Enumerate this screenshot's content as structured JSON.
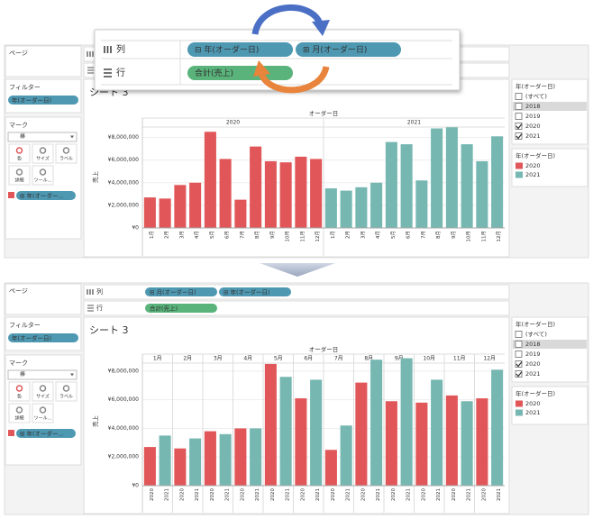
{
  "zoom_overlay": {
    "columns_label": "列",
    "columns_pills": [
      "⊟ 年(オーダー日)",
      "⊞ 月(オーダー日)"
    ],
    "rows_label": "行",
    "rows_pills": [
      "合計(売上)"
    ]
  },
  "panels": [
    {
      "page": "ページ",
      "filter_title": "フィルター",
      "filter_pill": "年(オーダー日)",
      "marks_title": "マーク",
      "mark_type": "棒",
      "mark_buttons": [
        "色",
        "サイズ",
        "ラベル",
        "詳細",
        "ツール..."
      ],
      "mark_pill": "⊞ 年(オーダー...",
      "sheet_title": "シート 3",
      "filter_card": {
        "title": "年(オーダー日)",
        "items": [
          "(すべて)",
          "2018",
          "2019",
          "2020",
          "2021"
        ],
        "checked": [
          false,
          false,
          false,
          true,
          true
        ]
      },
      "legend_title": "年(オーダー日)"
    },
    {
      "page": "ページ",
      "filter_title": "フィルター",
      "filter_pill": "年(オーダー日)",
      "marks_title": "マーク",
      "mark_type": "棒",
      "mark_buttons": [
        "色",
        "サイズ",
        "ラベル",
        "詳細",
        "ツール..."
      ],
      "mark_pill": "⊞ 年(オーダー...",
      "columns_label": "列",
      "columns_pills": [
        "⊞ 月(オーダー日)",
        "⊞ 年(オーダー日)"
      ],
      "rows_label": "行",
      "rows_pills": [
        "合計(売上)"
      ],
      "sheet_title": "シート 3",
      "filter_card": {
        "title": "年(オーダー日)",
        "items": [
          "(すべて)",
          "2018",
          "2019",
          "2020",
          "2021"
        ],
        "checked": [
          false,
          false,
          false,
          true,
          true
        ]
      },
      "legend_title": "年(オーダー日)"
    }
  ],
  "chart_data": [
    {
      "type": "bar",
      "grouping": "series",
      "x_label": "オーダー日",
      "y_label": "売上",
      "categories": [
        "1月",
        "2月",
        "3月",
        "4月",
        "5月",
        "6月",
        "7月",
        "8月",
        "9月",
        "10月",
        "11月",
        "12月"
      ],
      "series": [
        {
          "name": "2020",
          "color": "#e15759",
          "values": [
            2700000,
            2600000,
            3800000,
            4000000,
            8500000,
            6100000,
            2500000,
            7200000,
            5900000,
            5800000,
            6300000,
            6100000
          ]
        },
        {
          "name": "2021",
          "color": "#76b7b2",
          "values": [
            3500000,
            3300000,
            3600000,
            4000000,
            7600000,
            7400000,
            4200000,
            8800000,
            8900000,
            7400000,
            5900000,
            8100000
          ]
        }
      ],
      "ylim": [
        0,
        9000000
      ],
      "yticks": [
        {
          "value": 0,
          "label": "¥0"
        },
        {
          "value": 2000000,
          "label": "¥2,000,000"
        },
        {
          "value": 4000000,
          "label": "¥4,000,000"
        },
        {
          "value": 6000000,
          "label": "¥6,000,000"
        },
        {
          "value": 8000000,
          "label": "¥8,000,000"
        }
      ]
    },
    {
      "type": "bar",
      "grouping": "category",
      "x_label": "オーダー日",
      "y_label": "売上",
      "categories": [
        "1月",
        "2月",
        "3月",
        "4月",
        "5月",
        "6月",
        "7月",
        "8月",
        "9月",
        "10月",
        "11月",
        "12月"
      ],
      "series": [
        {
          "name": "2020",
          "color": "#e15759",
          "values": [
            2700000,
            2600000,
            3800000,
            4000000,
            8500000,
            6100000,
            2500000,
            7200000,
            5900000,
            5800000,
            6300000,
            6100000
          ]
        },
        {
          "name": "2021",
          "color": "#76b7b2",
          "values": [
            3500000,
            3300000,
            3600000,
            4000000,
            7600000,
            7400000,
            4200000,
            8800000,
            8900000,
            7400000,
            5900000,
            8100000
          ]
        }
      ],
      "ylim": [
        0,
        9000000
      ],
      "yticks": [
        {
          "value": 0,
          "label": "¥0"
        },
        {
          "value": 2000000,
          "label": "¥2,000,000"
        },
        {
          "value": 4000000,
          "label": "¥4,000,000"
        },
        {
          "value": 6000000,
          "label": "¥6,000,000"
        },
        {
          "value": 8000000,
          "label": "¥8,000,000"
        }
      ]
    }
  ]
}
